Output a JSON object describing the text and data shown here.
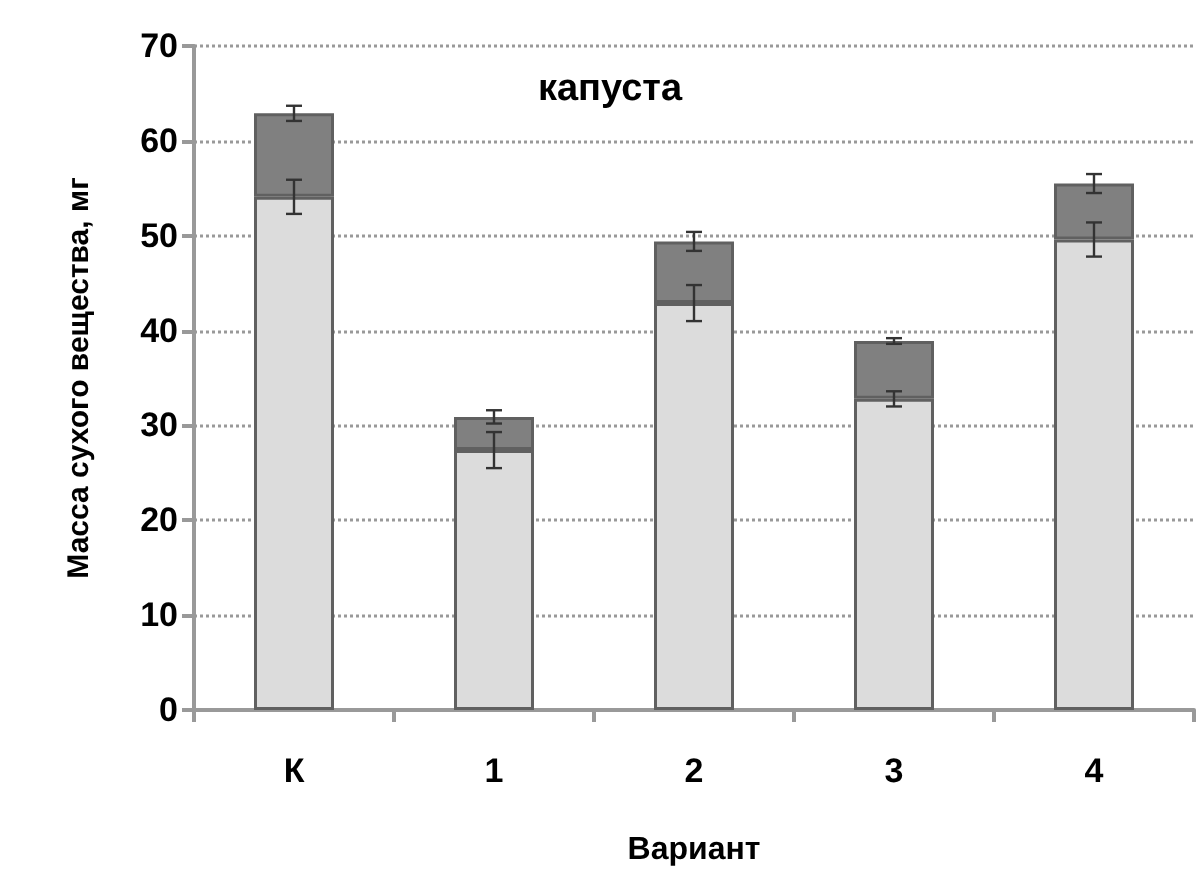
{
  "chart_data": {
    "type": "bar",
    "title": "капуста",
    "xlabel": "Вариант",
    "ylabel": "Масса сухого вещества, мг",
    "categories": [
      "К",
      "1",
      "2",
      "3",
      "4"
    ],
    "stacked": true,
    "series": [
      {
        "color": "#dcdcdc",
        "values": [
          54.1,
          27.4,
          42.9,
          32.8,
          49.6
        ],
        "errors": [
          1.8,
          1.9,
          1.9,
          0.8,
          1.8
        ]
      },
      {
        "color": "#808080",
        "values": [
          8.8,
          3.5,
          6.5,
          6.1,
          5.9
        ],
        "errors": [
          0.8,
          0.7,
          1.0,
          0.3,
          1.0
        ]
      }
    ],
    "ylim": [
      0,
      70
    ],
    "yticks": [
      0,
      10,
      20,
      30,
      40,
      50,
      60,
      70
    ],
    "grid": "y"
  }
}
